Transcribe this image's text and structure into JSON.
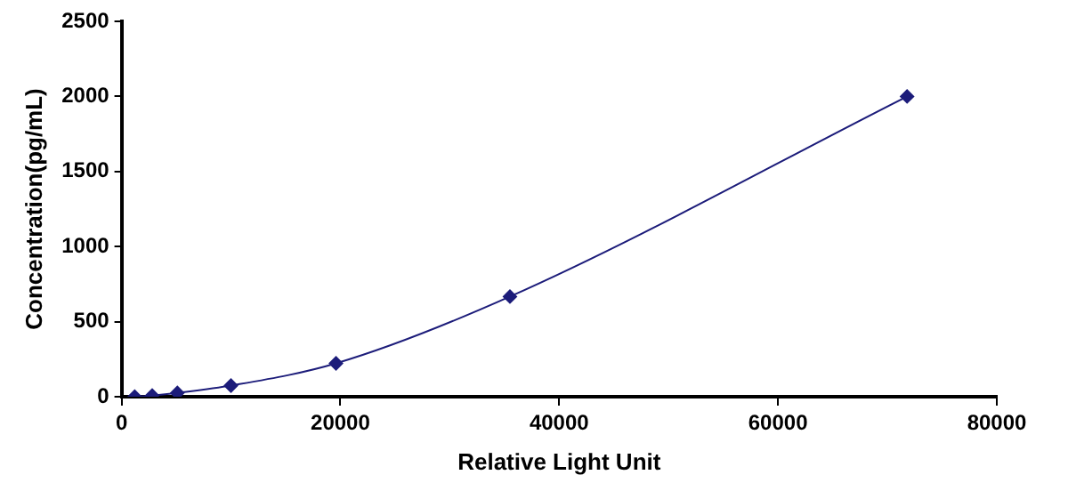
{
  "chart_data": {
    "type": "line",
    "xlabel": "Relative Light Unit",
    "ylabel": "Concentration(pg/mL)",
    "x": [
      1200,
      2800,
      5100,
      10000,
      19600,
      35500,
      71800
    ],
    "series": [
      {
        "color": "#1c1c7a",
        "values": [
          0,
          8,
          25,
          74,
          222,
          667,
          2000
        ]
      }
    ],
    "xlim": [
      0,
      80000
    ],
    "xticks": [
      0,
      20000,
      40000,
      60000,
      80000
    ],
    "ylim": [
      0,
      2500
    ],
    "yticks": [
      0,
      500,
      1000,
      1500,
      2000,
      2500
    ],
    "grid": false,
    "legend": false,
    "marker": "diamond",
    "line_style": "solid"
  }
}
